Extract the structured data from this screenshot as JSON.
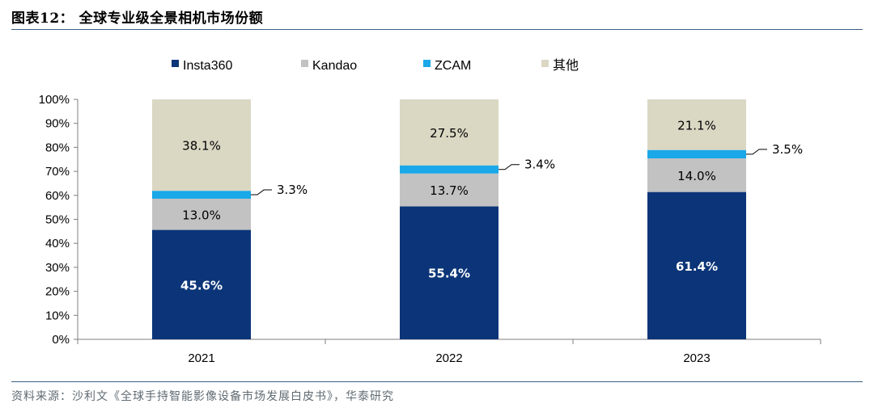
{
  "title": "图表12： 全球专业级全景相机市场份额",
  "source": "资料来源：沙利文《全球手持智能影像设备市场发展白皮书》，华泰研究",
  "colors": {
    "Insta360": "#0b3578",
    "Kandao": "#c2c2c2",
    "ZCAM": "#1aa8e8",
    "其他": "#dad7c3",
    "rule": "#3a5f84"
  },
  "chart_data": {
    "type": "bar",
    "stacked": true,
    "title": "",
    "xlabel": "",
    "ylabel": "",
    "categories": [
      "2021",
      "2022",
      "2023"
    ],
    "ylim": [
      0,
      100
    ],
    "yticks": [
      "0%",
      "10%",
      "20%",
      "30%",
      "40%",
      "50%",
      "60%",
      "70%",
      "80%",
      "90%",
      "100%"
    ],
    "legend_position": "top",
    "series": [
      {
        "name": "Insta360",
        "values": [
          45.6,
          55.4,
          61.4
        ],
        "labels": [
          "45.6%",
          "55.4%",
          "61.4%"
        ]
      },
      {
        "name": "Kandao",
        "values": [
          13.0,
          13.7,
          14.0
        ],
        "labels": [
          "13.0%",
          "13.7%",
          "14.0%"
        ]
      },
      {
        "name": "ZCAM",
        "values": [
          3.3,
          3.4,
          3.5
        ],
        "labels": [
          "3.3%",
          "3.4%",
          "3.5%"
        ]
      },
      {
        "name": "其他",
        "values": [
          38.1,
          27.5,
          21.1
        ],
        "labels": [
          "38.1%",
          "27.5%",
          "21.1%"
        ]
      }
    ]
  }
}
